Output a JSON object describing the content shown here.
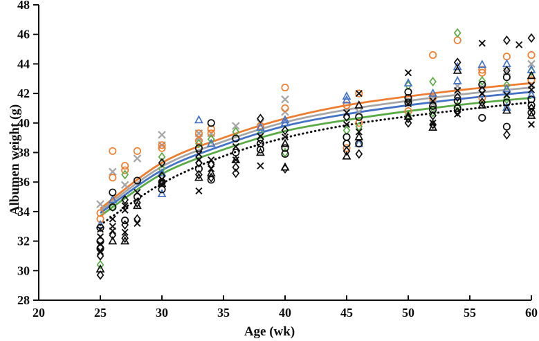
{
  "chart_data": {
    "type": "scatter",
    "title": "",
    "xlabel": "Age (wk)",
    "ylabel": "Albumen weight (g)",
    "xlim": [
      20,
      60
    ],
    "xstep": 5,
    "ylim": [
      28,
      48
    ],
    "ystep": 2,
    "grid": false,
    "legend": "none",
    "axis_color": "#0d0d0d",
    "curve_ages": [
      25,
      30,
      35,
      40,
      45,
      50,
      55,
      60
    ],
    "curves": [
      {
        "name": "orange-fit",
        "color": "#ED7D31",
        "style": "solid",
        "values": [
          34.2,
          37.3,
          39.0,
          40.3,
          41.2,
          41.8,
          42.3,
          42.7
        ]
      },
      {
        "name": "gray-fit",
        "color": "#A6A6A6",
        "style": "solid",
        "values": [
          34.05,
          37.05,
          38.75,
          40.05,
          40.9,
          41.5,
          42.0,
          42.4
        ]
      },
      {
        "name": "blue-fit",
        "color": "#4472C4",
        "style": "solid",
        "values": [
          33.9,
          36.8,
          38.5,
          39.8,
          40.6,
          41.2,
          41.7,
          42.1
        ]
      },
      {
        "name": "green-fit",
        "color": "#5AAA46",
        "style": "solid",
        "values": [
          33.7,
          36.55,
          38.2,
          39.45,
          40.2,
          40.8,
          41.3,
          41.7
        ]
      },
      {
        "name": "black-dotted-fit",
        "color": "#0d0d0d",
        "style": "dotted",
        "values": [
          33.1,
          35.9,
          37.75,
          39.0,
          39.85,
          40.45,
          40.95,
          41.4
        ]
      }
    ],
    "series": [
      {
        "name": "gray-x",
        "marker": "x",
        "color": "#A6A6A6",
        "points": [
          [
            25,
            34.5
          ],
          [
            26,
            36.7
          ],
          [
            27,
            35.8
          ],
          [
            28,
            37.6
          ],
          [
            30,
            39.2
          ],
          [
            30,
            38.5
          ],
          [
            33,
            39.3
          ],
          [
            33,
            39.0
          ],
          [
            34,
            39.3
          ],
          [
            36,
            39.8
          ],
          [
            38,
            40.0
          ],
          [
            40,
            41.6
          ],
          [
            40,
            40.75
          ],
          [
            46,
            40.75
          ],
          [
            50,
            41.5
          ],
          [
            52,
            41.3
          ],
          [
            54,
            42.5
          ],
          [
            56,
            42.4
          ],
          [
            58,
            43.5
          ],
          [
            60,
            44.0
          ],
          [
            60,
            42.6
          ]
        ]
      },
      {
        "name": "orange-circle",
        "marker": "circle",
        "color": "#ED7D31",
        "points": [
          [
            25,
            33.9
          ],
          [
            25,
            33.5
          ],
          [
            26,
            38.1
          ],
          [
            26,
            36.3
          ],
          [
            27,
            37.1
          ],
          [
            27,
            36.8
          ],
          [
            28,
            38.1
          ],
          [
            30,
            38.5
          ],
          [
            30,
            38.3
          ],
          [
            33,
            39.3
          ],
          [
            33,
            38.8
          ],
          [
            34,
            39.6
          ],
          [
            34,
            39.3
          ],
          [
            38,
            39.8
          ],
          [
            40,
            42.4
          ],
          [
            40,
            41.0
          ],
          [
            45,
            41.2
          ],
          [
            45,
            38.3
          ],
          [
            46,
            42.0
          ],
          [
            46,
            40.0
          ],
          [
            50,
            40.8
          ],
          [
            52,
            44.6
          ],
          [
            52,
            41.7
          ],
          [
            54,
            45.6
          ],
          [
            56,
            43.6
          ],
          [
            56,
            43.4
          ],
          [
            56,
            41.7
          ],
          [
            58,
            44.5
          ],
          [
            60,
            44.6
          ],
          [
            60,
            42.9
          ]
        ]
      },
      {
        "name": "green-diamond",
        "marker": "diamond",
        "color": "#5AAA46",
        "points": [
          [
            25,
            30.4
          ],
          [
            26,
            34.3
          ],
          [
            27,
            36.5
          ],
          [
            30,
            37.7
          ],
          [
            30,
            36.9
          ],
          [
            33,
            38.6
          ],
          [
            34,
            38.9
          ],
          [
            36,
            39.4
          ],
          [
            38,
            39.3
          ],
          [
            40,
            38.0
          ],
          [
            45,
            39.5
          ],
          [
            46,
            39.75
          ],
          [
            50,
            42.55
          ],
          [
            50,
            40.5
          ],
          [
            52,
            42.8
          ],
          [
            52,
            40.7
          ],
          [
            54,
            46.1
          ],
          [
            54,
            41.15
          ],
          [
            56,
            42.85
          ],
          [
            58,
            42.55
          ],
          [
            58,
            41.6
          ],
          [
            60,
            43.5
          ]
        ]
      },
      {
        "name": "blue-triangle",
        "marker": "triangle",
        "color": "#4472C4",
        "points": [
          [
            25,
            33.1
          ],
          [
            26,
            34.8
          ],
          [
            30,
            36.6
          ],
          [
            30,
            35.2
          ],
          [
            33,
            40.2
          ],
          [
            34,
            38.6
          ],
          [
            38,
            39.7
          ],
          [
            40,
            40.2
          ],
          [
            40,
            40.0
          ],
          [
            45,
            41.8
          ],
          [
            45,
            41.55
          ],
          [
            46,
            38.6
          ],
          [
            50,
            42.7
          ],
          [
            52,
            42.0
          ],
          [
            54,
            43.8
          ],
          [
            54,
            42.85
          ],
          [
            56,
            43.95
          ],
          [
            58,
            44.0
          ],
          [
            58,
            42.3
          ],
          [
            58,
            41.05
          ],
          [
            60,
            43.6
          ],
          [
            60,
            41.9
          ]
        ]
      },
      {
        "name": "black-circle",
        "marker": "circle",
        "color": "#0d0d0d",
        "points": [
          [
            25,
            32.9
          ],
          [
            25,
            32.0
          ],
          [
            25,
            31.5
          ],
          [
            26,
            35.3
          ],
          [
            26,
            34.3
          ],
          [
            27,
            33.4
          ],
          [
            28,
            36.1
          ],
          [
            28,
            35.0
          ],
          [
            30,
            36.0
          ],
          [
            30,
            35.5
          ],
          [
            33,
            38.3
          ],
          [
            33,
            36.9
          ],
          [
            34,
            40.0
          ],
          [
            34,
            36.15
          ],
          [
            36,
            38.95
          ],
          [
            36,
            38.0
          ],
          [
            38,
            38.6
          ],
          [
            38,
            38.2
          ],
          [
            40,
            38.3
          ],
          [
            40,
            37.9
          ],
          [
            45,
            39.05
          ],
          [
            45,
            38.6
          ],
          [
            46,
            40.4
          ],
          [
            46,
            38.6
          ],
          [
            50,
            42.1
          ],
          [
            50,
            41.7
          ],
          [
            50,
            41.4
          ],
          [
            52,
            41.15
          ],
          [
            52,
            40.9
          ],
          [
            54,
            41.5
          ],
          [
            54,
            41.0
          ],
          [
            56,
            42.6
          ],
          [
            56,
            40.35
          ],
          [
            58,
            43.1
          ],
          [
            58,
            41.4
          ],
          [
            58,
            39.75
          ],
          [
            60,
            41.6
          ],
          [
            60,
            41.2
          ],
          [
            60,
            40.7
          ]
        ]
      },
      {
        "name": "black-x",
        "marker": "x",
        "color": "#0d0d0d",
        "points": [
          [
            25,
            32.8
          ],
          [
            25,
            32.3
          ],
          [
            25,
            31.8
          ],
          [
            25,
            31.3
          ],
          [
            26,
            33.5
          ],
          [
            26,
            33.0
          ],
          [
            26,
            32.7
          ],
          [
            27,
            34.4
          ],
          [
            27,
            34.1
          ],
          [
            27,
            32.6
          ],
          [
            28,
            35.3
          ],
          [
            28,
            33.2
          ],
          [
            30,
            36.2
          ],
          [
            30,
            35.8
          ],
          [
            33,
            37.9
          ],
          [
            33,
            37.5
          ],
          [
            33,
            35.4
          ],
          [
            34,
            37.5
          ],
          [
            34,
            36.9
          ],
          [
            36,
            38.4
          ],
          [
            36,
            37.5
          ],
          [
            38,
            39.1
          ],
          [
            38,
            37.1
          ],
          [
            40,
            39.05
          ],
          [
            45,
            40.7
          ],
          [
            45,
            39.9
          ],
          [
            46,
            42.0
          ],
          [
            46,
            39.4
          ],
          [
            50,
            43.4
          ],
          [
            50,
            41.3
          ],
          [
            52,
            41.5
          ],
          [
            52,
            40.0
          ],
          [
            54,
            42.2
          ],
          [
            54,
            40.6
          ],
          [
            56,
            45.4
          ],
          [
            56,
            42.0
          ],
          [
            59,
            45.3
          ],
          [
            58,
            41.9
          ],
          [
            60,
            42.55
          ],
          [
            60,
            42.25
          ],
          [
            60,
            39.9
          ]
        ]
      },
      {
        "name": "black-diamond",
        "marker": "diamond",
        "color": "#0d0d0d",
        "points": [
          [
            25,
            31.6
          ],
          [
            25,
            31.0
          ],
          [
            25,
            29.7
          ],
          [
            26,
            32.4
          ],
          [
            27,
            34.8
          ],
          [
            27,
            33.1
          ],
          [
            27,
            32.2
          ],
          [
            28,
            34.6
          ],
          [
            28,
            33.5
          ],
          [
            30,
            37.3
          ],
          [
            30,
            36.4
          ],
          [
            33,
            37.3
          ],
          [
            33,
            36.5
          ],
          [
            34,
            37.2
          ],
          [
            34,
            36.3
          ],
          [
            36,
            37.0
          ],
          [
            36,
            36.6
          ],
          [
            38,
            40.3
          ],
          [
            38,
            38.9
          ],
          [
            40,
            39.5
          ],
          [
            40,
            36.9
          ],
          [
            45,
            40.4
          ],
          [
            45,
            38.1
          ],
          [
            46,
            37.9
          ],
          [
            50,
            40.3
          ],
          [
            50,
            40.0
          ],
          [
            52,
            40.5
          ],
          [
            52,
            39.9
          ],
          [
            54,
            44.1
          ],
          [
            54,
            41.75
          ],
          [
            54,
            40.75
          ],
          [
            56,
            42.2
          ],
          [
            56,
            41.4
          ],
          [
            58,
            45.6
          ],
          [
            58,
            43.55
          ],
          [
            58,
            39.2
          ],
          [
            60,
            45.75
          ],
          [
            60,
            41.0
          ]
        ]
      },
      {
        "name": "black-triangle",
        "marker": "triangle",
        "color": "#0d0d0d",
        "points": [
          [
            25,
            30.1
          ],
          [
            26,
            32.0
          ],
          [
            27,
            32.0
          ],
          [
            28,
            34.4
          ],
          [
            30,
            35.9
          ],
          [
            33,
            36.3
          ],
          [
            34,
            36.6
          ],
          [
            36,
            37.5
          ],
          [
            38,
            38.0
          ],
          [
            40,
            38.6
          ],
          [
            40,
            37.0
          ],
          [
            45,
            37.75
          ],
          [
            46,
            41.2
          ],
          [
            46,
            39.05
          ],
          [
            50,
            40.45
          ],
          [
            52,
            39.7
          ],
          [
            54,
            43.55
          ],
          [
            56,
            41.2
          ],
          [
            58,
            40.85
          ],
          [
            60,
            43.2
          ],
          [
            60,
            40.5
          ]
        ]
      }
    ]
  }
}
